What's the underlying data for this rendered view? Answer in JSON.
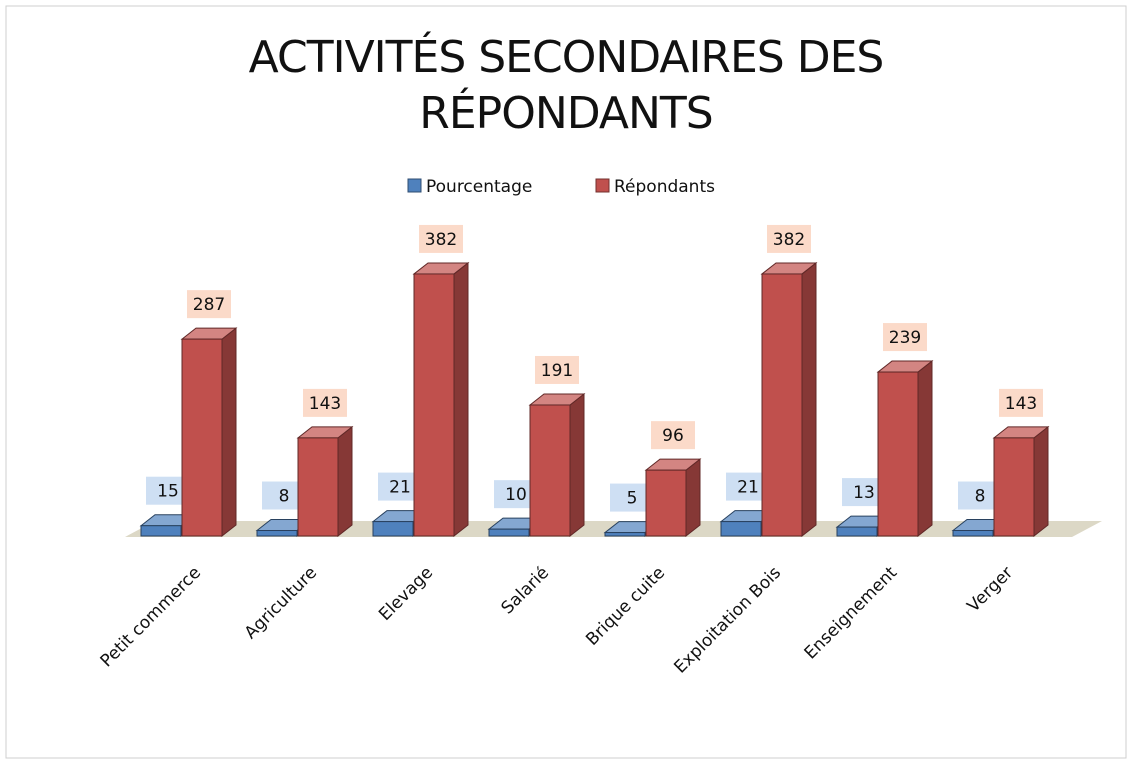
{
  "chart_data": {
    "type": "bar3d",
    "title": "ACTIVITÉS SECONDAIRES DES RÉPONDANTS",
    "categories": [
      "Petit commerce",
      "Agriculture",
      "Elevage",
      "Salarié",
      "Brique cuite",
      "Exploitation Bois",
      "Enseignement",
      "Verger"
    ],
    "series": [
      {
        "name": "Pourcentage",
        "color": "#4f81bd",
        "label_color": "#c6d9f1",
        "values": [
          15,
          8,
          21,
          10,
          5,
          21,
          13,
          8
        ]
      },
      {
        "name": "Répondants",
        "color": "#c0504d",
        "label_color": "#fad3bf",
        "values": [
          287,
          143,
          382,
          191,
          96,
          382,
          239,
          143
        ]
      }
    ],
    "legend": "top"
  }
}
